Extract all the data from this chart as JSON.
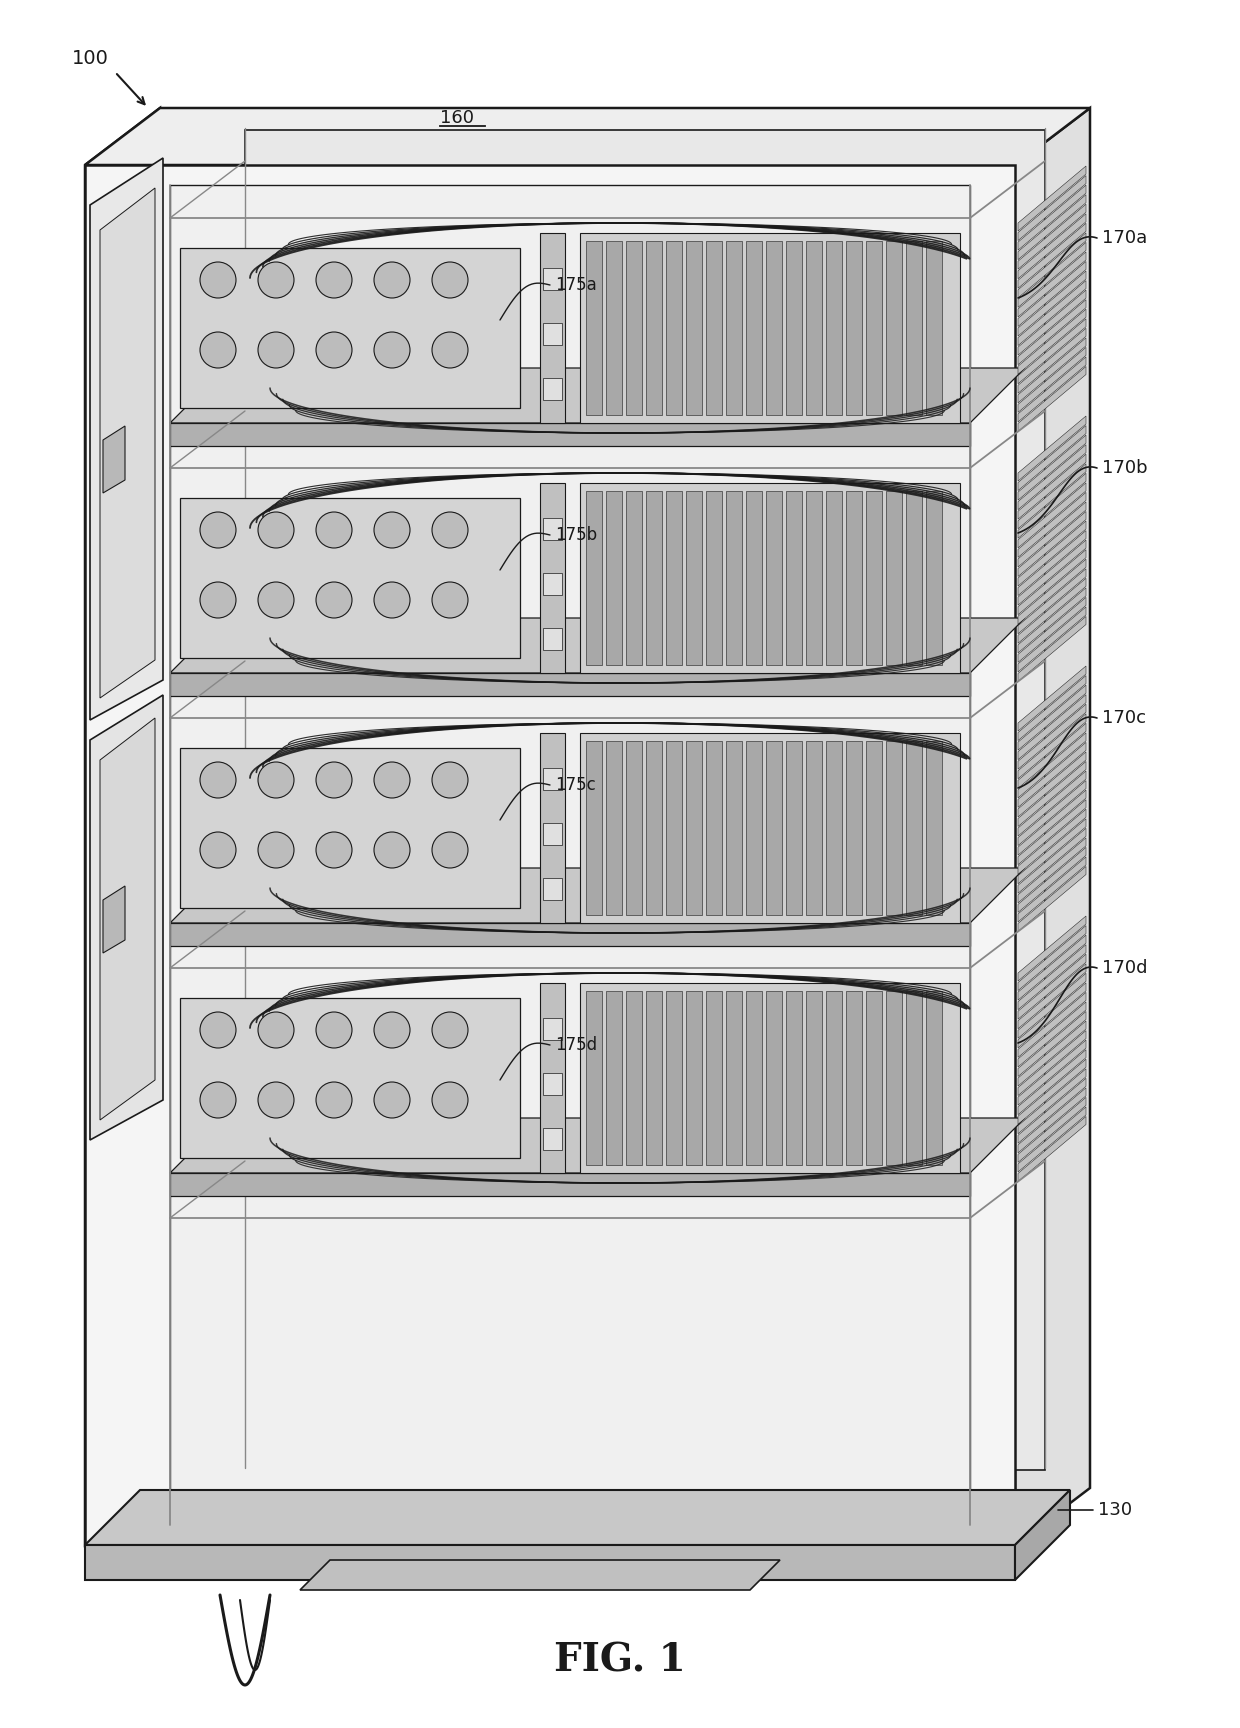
{
  "background_color": "#ffffff",
  "line_color": "#1a1a1a",
  "light_gray": "#c8c8c8",
  "mid_gray": "#a0a0a0",
  "dark_gray": "#505050",
  "fig_label": "FIG. 1",
  "fig_label_fontsize": 28,
  "label_fontsize": 13,
  "ref_100": "100",
  "ref_160": "160",
  "ref_130": "130",
  "ref_170a": "170a",
  "ref_170b": "170b",
  "ref_170c": "170c",
  "ref_170d": "170d",
  "ref_175a": "175a",
  "ref_175b": "175b",
  "ref_175c": "175c",
  "ref_175d": "175d"
}
